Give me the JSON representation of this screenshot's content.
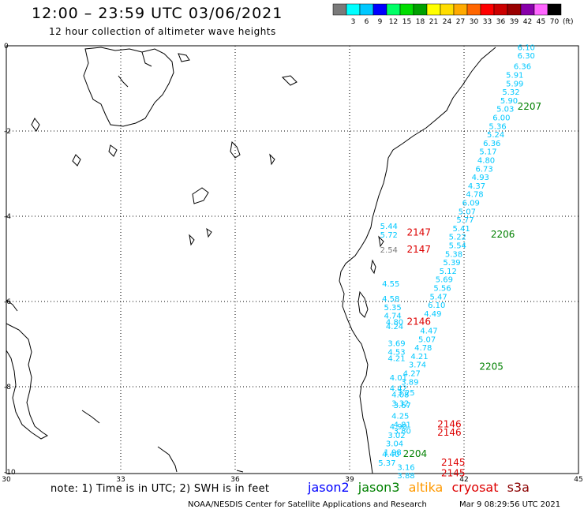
{
  "header": {
    "title": "12:00 – 23:59 UTC 03/06/2021",
    "subtitle": "12 hour collection of altimeter wave heights"
  },
  "legend": {
    "unit": "(ft)",
    "bins": [
      {
        "label": "",
        "color": "#7a7a7a"
      },
      {
        "label": "3",
        "color": "#00ffff"
      },
      {
        "label": "6",
        "color": "#00c8ff"
      },
      {
        "label": "9",
        "color": "#0000ff"
      },
      {
        "label": "12",
        "color": "#00ff66"
      },
      {
        "label": "15",
        "color": "#00dd00"
      },
      {
        "label": "18",
        "color": "#00a000"
      },
      {
        "label": "21",
        "color": "#ffff00"
      },
      {
        "label": "24",
        "color": "#ffdd00"
      },
      {
        "label": "27",
        "color": "#ffaa00"
      },
      {
        "label": "30",
        "color": "#ff6600"
      },
      {
        "label": "33",
        "color": "#ff0000"
      },
      {
        "label": "36",
        "color": "#cc0000"
      },
      {
        "label": "39",
        "color": "#990000"
      },
      {
        "label": "42",
        "color": "#8800aa"
      },
      {
        "label": "45",
        "color": "#ff66ff"
      },
      {
        "label": "70",
        "color": "#000000"
      }
    ]
  },
  "axes": {
    "lon_labels": [
      "30",
      "33",
      "36",
      "39",
      "42",
      "45"
    ],
    "lat_labels": [
      "0",
      "-2",
      "-4",
      "-6",
      "-8",
      "-10"
    ],
    "lon_range": [
      30,
      45
    ],
    "lat_range": [
      0,
      -10
    ]
  },
  "tracks": [
    {
      "id": "2207",
      "color": "#008000",
      "lon": 43.4,
      "lat": -1.5
    },
    {
      "id": "2206",
      "color": "#008000",
      "lon": 42.7,
      "lat": -4.5
    },
    {
      "id": "2205",
      "color": "#008000",
      "lon": 42.4,
      "lat": -7.6
    },
    {
      "id": "2204",
      "color": "#008000",
      "lon": 40.4,
      "lat": -9.65
    },
    {
      "id": "2147",
      "color": "#dd0000",
      "lon": 40.5,
      "lat": -4.45
    },
    {
      "id": "2147",
      "color": "#dd0000",
      "lon": 40.5,
      "lat": -4.85
    },
    {
      "id": "2146",
      "color": "#dd0000",
      "lon": 40.5,
      "lat": -6.55
    },
    {
      "id": "2146",
      "color": "#dd0000",
      "lon": 41.3,
      "lat": -8.95
    },
    {
      "id": "2146",
      "color": "#dd0000",
      "lon": 41.3,
      "lat": -9.15
    },
    {
      "id": "2145",
      "color": "#dd0000",
      "lon": 41.4,
      "lat": -9.85
    },
    {
      "id": "2145",
      "color": "#dd0000",
      "lon": 41.4,
      "lat": -10.1
    }
  ],
  "wave_heights": [
    {
      "text": "6.10",
      "lon": 43.4,
      "lat": -0.1
    },
    {
      "text": "6.30",
      "lon": 43.4,
      "lat": -0.3
    },
    {
      "text": "6.36",
      "lon": 43.3,
      "lat": -0.55
    },
    {
      "text": "5.91",
      "lon": 43.1,
      "lat": -0.75
    },
    {
      "text": "5.99",
      "lon": 43.1,
      "lat": -0.95
    },
    {
      "text": "5.32",
      "lon": 43.0,
      "lat": -1.15
    },
    {
      "text": "5.90",
      "lon": 42.95,
      "lat": -1.35
    },
    {
      "text": "5.03",
      "lon": 42.85,
      "lat": -1.55
    },
    {
      "text": "6.00",
      "lon": 42.75,
      "lat": -1.75
    },
    {
      "text": "5.36",
      "lon": 42.65,
      "lat": -1.95
    },
    {
      "text": "5.24",
      "lon": 42.6,
      "lat": -2.15
    },
    {
      "text": "6.36",
      "lon": 42.5,
      "lat": -2.35
    },
    {
      "text": "5.17",
      "lon": 42.4,
      "lat": -2.55
    },
    {
      "text": "4.80",
      "lon": 42.35,
      "lat": -2.75
    },
    {
      "text": "6.73",
      "lon": 42.3,
      "lat": -2.95
    },
    {
      "text": "4.93",
      "lon": 42.2,
      "lat": -3.15
    },
    {
      "text": "4.37",
      "lon": 42.1,
      "lat": -3.35
    },
    {
      "text": "4.78",
      "lon": 42.05,
      "lat": -3.55
    },
    {
      "text": "6.09",
      "lon": 41.95,
      "lat": -3.75
    },
    {
      "text": "5.07",
      "lon": 41.85,
      "lat": -3.95
    },
    {
      "text": "5.77",
      "lon": 41.8,
      "lat": -4.15
    },
    {
      "text": "5.41",
      "lon": 41.7,
      "lat": -4.35
    },
    {
      "text": "5.22",
      "lon": 41.6,
      "lat": -4.55
    },
    {
      "text": "5.54",
      "lon": 41.6,
      "lat": -4.75
    },
    {
      "text": "5.38",
      "lon": 41.5,
      "lat": -4.95
    },
    {
      "text": "5.39",
      "lon": 41.45,
      "lat": -5.15
    },
    {
      "text": "5.12",
      "lon": 41.35,
      "lat": -5.35
    },
    {
      "text": "5.69",
      "lon": 41.25,
      "lat": -5.55
    },
    {
      "text": "5.56",
      "lon": 41.2,
      "lat": -5.75
    },
    {
      "text": "5.47",
      "lon": 41.1,
      "lat": -5.95
    },
    {
      "text": "6.10",
      "lon": 41.05,
      "lat": -6.15
    },
    {
      "text": "4.49",
      "lon": 40.95,
      "lat": -6.35
    },
    {
      "text": "4.47",
      "lon": 40.85,
      "lat": -6.75
    },
    {
      "text": "5.07",
      "lon": 40.8,
      "lat": -6.95
    },
    {
      "text": "4.78",
      "lon": 40.7,
      "lat": -7.15
    },
    {
      "text": "4.21",
      "lon": 40.6,
      "lat": -7.35
    },
    {
      "text": "3.74",
      "lon": 40.55,
      "lat": -7.55
    },
    {
      "text": "4.27",
      "lon": 40.4,
      "lat": -7.75
    },
    {
      "text": "3.89",
      "lon": 40.35,
      "lat": -7.95
    },
    {
      "text": "3.25",
      "lon": 40.25,
      "lat": -8.2
    },
    {
      "text": "3.67",
      "lon": 40.15,
      "lat": -8.5
    },
    {
      "text": "4.25",
      "lon": 40.1,
      "lat": -8.75
    },
    {
      "text": "4.90",
      "lon": 40.05,
      "lat": -9.0
    },
    {
      "text": "3.02",
      "lon": 40.0,
      "lat": -9.2
    },
    {
      "text": "1.98",
      "lon": 39.9,
      "lat": -9.6
    },
    {
      "text": "3.16",
      "lon": 40.25,
      "lat": -9.95
    },
    {
      "text": "3.88",
      "lon": 40.25,
      "lat": -10.15
    },
    {
      "text": "5.44",
      "lon": 39.8,
      "lat": -4.3
    },
    {
      "text": "5.72",
      "lon": 39.8,
      "lat": -4.5
    },
    {
      "text": "4.55",
      "lon": 39.85,
      "lat": -5.65
    },
    {
      "text": "4.58",
      "lon": 39.85,
      "lat": -6.0
    },
    {
      "text": "5.35",
      "lon": 39.9,
      "lat": -6.2
    },
    {
      "text": "4.74",
      "lon": 39.9,
      "lat": -6.4
    },
    {
      "text": "4.80",
      "lon": 39.95,
      "lat": -6.55
    },
    {
      "text": "4.24",
      "lon": 39.95,
      "lat": -6.65
    },
    {
      "text": "3.69",
      "lon": 40.0,
      "lat": -7.05
    },
    {
      "text": "4.53",
      "lon": 40.0,
      "lat": -7.25
    },
    {
      "text": "4.21",
      "lon": 40.0,
      "lat": -7.4
    },
    {
      "text": "4.01",
      "lon": 40.05,
      "lat": -7.85
    },
    {
      "text": "4.42",
      "lon": 40.05,
      "lat": -8.1
    },
    {
      "text": "4.08",
      "lon": 40.1,
      "lat": -8.25
    },
    {
      "text": "3.32",
      "lon": 40.1,
      "lat": -8.45
    },
    {
      "text": "4.81",
      "lon": 40.15,
      "lat": -8.95
    },
    {
      "text": "3.80",
      "lon": 40.15,
      "lat": -9.1
    },
    {
      "text": "3.04",
      "lon": 39.95,
      "lat": -9.4
    },
    {
      "text": "4.40",
      "lon": 39.85,
      "lat": -9.65
    },
    {
      "text": "5.37",
      "lon": 39.75,
      "lat": -9.85
    }
  ],
  "gray_values": [
    {
      "text": "2.54",
      "lon": 39.8,
      "lat": -4.85
    }
  ],
  "footer": {
    "note": "note: 1) Time is in UTC; 2) SWH is in feet",
    "satellites": [
      {
        "name": "jason2",
        "color": "#0000ff"
      },
      {
        "name": "jason3",
        "color": "#008000"
      },
      {
        "name": "altika",
        "color": "#ff9900"
      },
      {
        "name": "cryosat",
        "color": "#dd0000"
      },
      {
        "name": "s3a",
        "color": "#8b0000"
      }
    ],
    "credit": "NOAA/NESDIS Center for Satellite Applications and Research",
    "date": "Mar  9 08:29:56 UTC 2021"
  }
}
